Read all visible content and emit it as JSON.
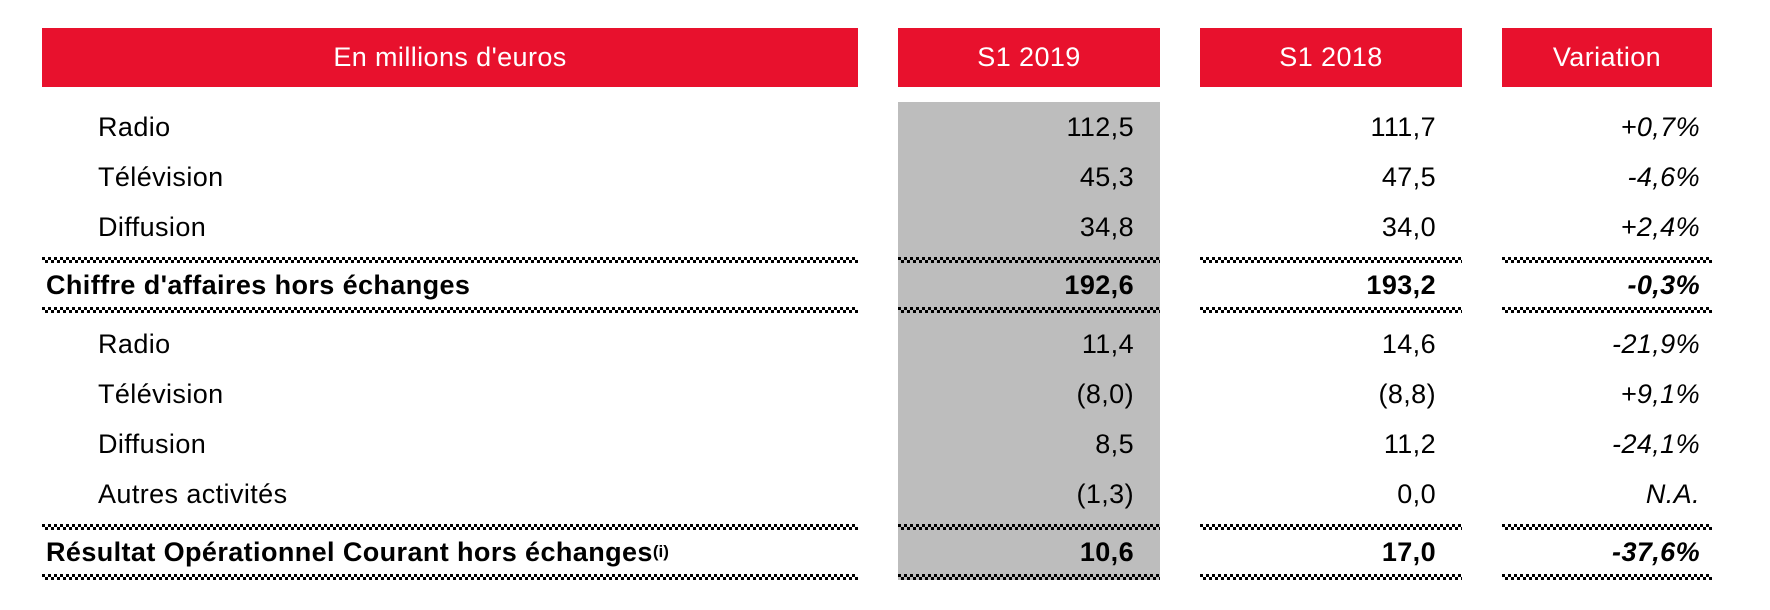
{
  "table": {
    "unit_header": "En millions d'euros",
    "column_headers": [
      "S1 2019",
      "S1 2018",
      "Variation"
    ],
    "rows": [
      {
        "label": "Radio",
        "indent": true,
        "bold": false,
        "s1_2019": "112,5",
        "s1_2018": "111,7",
        "variation": "+0,7%"
      },
      {
        "label": "Télévision",
        "indent": true,
        "bold": false,
        "s1_2019": "45,3",
        "s1_2018": "47,5",
        "variation": "-4,6%"
      },
      {
        "label": "Diffusion",
        "indent": true,
        "bold": false,
        "s1_2019": "34,8",
        "s1_2018": "34,0",
        "variation": "+2,4%"
      },
      {
        "label": "Chiffre d'affaires hors échanges",
        "indent": false,
        "bold": true,
        "s1_2019": "192,6",
        "s1_2018": "193,2",
        "variation": "-0,3%"
      },
      {
        "label": "Radio",
        "indent": true,
        "bold": false,
        "s1_2019": "11,4",
        "s1_2018": "14,6",
        "variation": "-21,9%"
      },
      {
        "label": "Télévision",
        "indent": true,
        "bold": false,
        "s1_2019": "(8,0)",
        "s1_2018": "(8,8)",
        "variation": "+9,1%"
      },
      {
        "label": "Diffusion",
        "indent": true,
        "bold": false,
        "s1_2019": "8,5",
        "s1_2018": "11,2",
        "variation": "-24,1%"
      },
      {
        "label": "Autres activités",
        "indent": true,
        "bold": false,
        "s1_2019": "(1,3)",
        "s1_2018": "0,0",
        "variation": "N.A."
      },
      {
        "label": "Résultat Opérationnel Courant hors échanges",
        "label_superscript": "(i)",
        "indent": false,
        "bold": true,
        "s1_2019": "10,6",
        "s1_2018": "17,0",
        "variation": "-37,6%"
      }
    ]
  },
  "colors": {
    "header_red": "#e8112d",
    "highlight_gray": "#bdbdbd",
    "text": "#000000"
  }
}
